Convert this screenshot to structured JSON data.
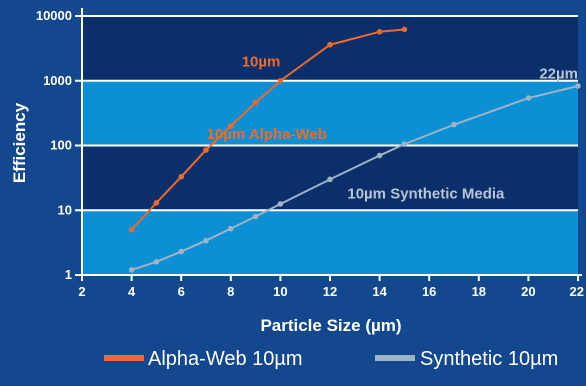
{
  "chart_data": {
    "type": "line",
    "y_scale": "log",
    "xlabel": "Particle Size (µm)",
    "ylabel": "Efficiency",
    "xlim": [
      2,
      22
    ],
    "ylim": [
      1,
      10000
    ],
    "x_ticks": [
      "2",
      "4",
      "6",
      "8",
      "10",
      "12",
      "14",
      "16",
      "18",
      "20",
      "22"
    ],
    "y_ticks": [
      "1",
      "10",
      "100",
      "1000",
      "10000"
    ],
    "y_tick_values": [
      1,
      10,
      100,
      1000,
      10000
    ],
    "bands": [
      {
        "from": 1,
        "to": 10,
        "color": "#0d8fd3"
      },
      {
        "from": 10,
        "to": 100,
        "color": "#0a2f6a"
      },
      {
        "from": 100,
        "to": 1000,
        "color": "#0d8fd3"
      },
      {
        "from": 1000,
        "to": 10000,
        "color": "#0a2f6a"
      }
    ],
    "series": [
      {
        "name": "Alpha-Web 10µm",
        "color": "#f06a2a",
        "x": [
          4,
          5,
          6,
          7,
          8,
          9,
          10,
          12,
          14,
          15
        ],
        "y": [
          5,
          13,
          33,
          85,
          200,
          460,
          1000,
          3600,
          5700,
          6200
        ]
      },
      {
        "name": "Synthetic 10µm",
        "color": "#9fb3c8",
        "x": [
          4,
          5,
          6,
          7,
          8,
          9,
          10,
          12,
          14,
          15,
          17,
          20,
          22
        ],
        "y": [
          1.2,
          1.6,
          2.3,
          3.4,
          5.2,
          8,
          12.5,
          30,
          70,
          105,
          210,
          540,
          830
        ]
      }
    ],
    "annotations": [
      {
        "text": "10µm",
        "x": 10.0,
        "y": 2000,
        "color": "#f06a2a",
        "anchor": "end"
      },
      {
        "text": "10µm Alpha-Web",
        "x": 9.45,
        "y": 150,
        "color": "#f06a2a",
        "anchor": "middle"
      },
      {
        "text": "10µm Synthetic Media",
        "x": 12.7,
        "y": 18,
        "color": "#b7c6d6",
        "anchor": "start"
      },
      {
        "text": "22µm",
        "x": 22,
        "y": 1300,
        "color": "#b7c6d6",
        "anchor": "end"
      }
    ],
    "legend": [
      {
        "label": "Alpha-Web 10µm",
        "color": "#f06a2a"
      },
      {
        "label": "Synthetic 10µm",
        "color": "#9fb3c8"
      }
    ],
    "legend_position": "bottom",
    "grid": false
  }
}
